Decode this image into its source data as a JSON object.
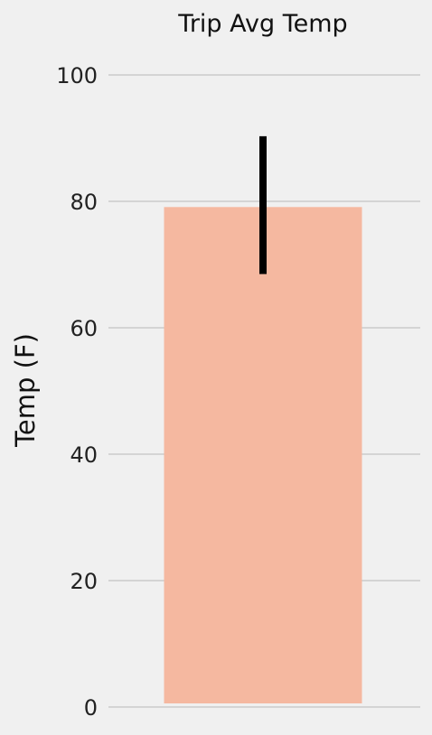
{
  "chart_data": {
    "type": "bar",
    "title": "Trip Avg Temp",
    "xlabel": "",
    "ylabel": "Temp (F)",
    "categories": [
      ""
    ],
    "values": [
      79.1
    ],
    "error": {
      "min": 68.5,
      "max": 90.3
    },
    "ylim": [
      0,
      100
    ],
    "yticks": [
      0,
      20,
      40,
      60,
      80,
      100
    ],
    "grid": true,
    "colors": {
      "background": "#f0f0f0",
      "bar": "#f5b8a0",
      "grid": "#cbcbcb",
      "errorbar": "#000000"
    }
  }
}
